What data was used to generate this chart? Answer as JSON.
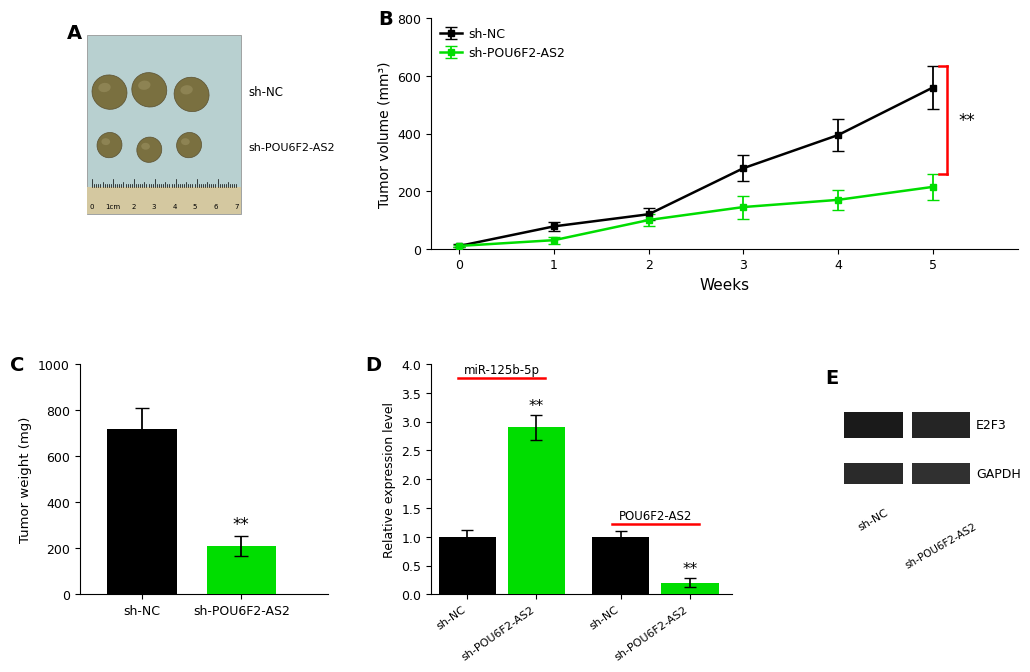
{
  "panel_B": {
    "weeks": [
      0,
      1,
      2,
      3,
      4,
      5
    ],
    "sh_NC_mean": [
      10,
      78,
      120,
      280,
      395,
      560
    ],
    "sh_NC_err": [
      5,
      15,
      20,
      45,
      55,
      75
    ],
    "sh_POU_mean": [
      10,
      30,
      100,
      145,
      170,
      215
    ],
    "sh_POU_err": [
      3,
      12,
      20,
      40,
      35,
      45
    ],
    "ylabel": "Tumor volume (mm³)",
    "xlabel": "Weeks",
    "ylim": [
      0,
      800
    ],
    "yticks": [
      0,
      200,
      400,
      600,
      800
    ],
    "color_NC": "#000000",
    "color_POU": "#00dd00",
    "legend_NC": "sh-NC",
    "legend_POU": "sh-POU6F2-AS2"
  },
  "panel_C": {
    "categories": [
      "sh-NC",
      "sh-POU6F2-AS2"
    ],
    "values": [
      720,
      210
    ],
    "errors": [
      90,
      45
    ],
    "colors": [
      "#000000",
      "#00dd00"
    ],
    "ylabel": "Tumor weight (mg)",
    "ylim": [
      0,
      1000
    ],
    "yticks": [
      0,
      200,
      400,
      600,
      800,
      1000
    ]
  },
  "panel_D": {
    "categories": [
      "sh-NC",
      "sh-POU6F2-AS2",
      "sh-NC",
      "sh-POU6F2-AS2"
    ],
    "values": [
      1.0,
      2.9,
      1.0,
      0.2
    ],
    "errors": [
      0.12,
      0.22,
      0.1,
      0.08
    ],
    "colors": [
      "#000000",
      "#00dd00",
      "#000000",
      "#00dd00"
    ],
    "ylabel": "Relative expression level",
    "ylim": [
      0,
      4.0
    ],
    "yticks": [
      0.0,
      0.5,
      1.0,
      1.5,
      2.0,
      2.5,
      3.0,
      3.5,
      4.0
    ],
    "label_miR": "miR-125b-5p",
    "label_POU": "POU6F2-AS2"
  },
  "panel_E": {
    "label_E2F3": "E2F3",
    "label_GAPDH": "GAPDH",
    "label_sh_NC": "sh-NC",
    "label_sh_POU": "sh-POU6F2-AS2"
  },
  "panel_A": {
    "bg_color": "#b8cece",
    "photo_bg": "#c5d8d8",
    "tumor_color_large": "#8b7d55",
    "tumor_color_small": "#8b7d55",
    "ruler_bg": "#d0c8b0"
  },
  "green_color": "#00dd00",
  "black_color": "#000000",
  "red_color": "#ff0000",
  "sig_text": "**"
}
